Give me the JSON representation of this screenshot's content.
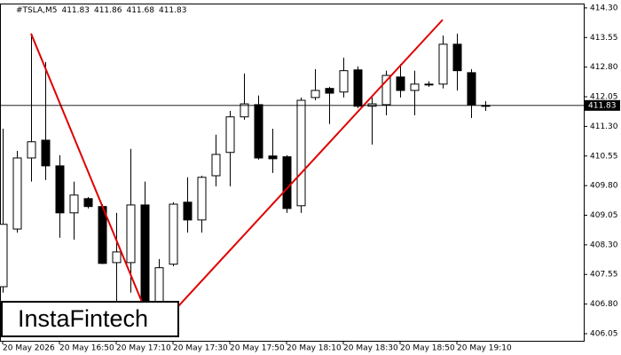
{
  "chart_data": {
    "type": "candlestick",
    "symbol": "#TSLA,M5",
    "quote": [
      411.83,
      411.86,
      411.68,
      411.83
    ],
    "watermark": "InstaFintech",
    "categories": [
      "20 May 2026",
      null,
      null,
      null,
      "20 May 16:50",
      null,
      null,
      null,
      "20 May 17:10",
      null,
      null,
      null,
      "20 May 17:30",
      null,
      null,
      null,
      "20 May 17:50",
      null,
      null,
      null,
      "20 May 18:10",
      null,
      null,
      null,
      "20 May 18:30",
      null,
      null,
      null,
      "20 May 18:50",
      null,
      null,
      null,
      "20 May 19:10",
      null,
      null
    ],
    "open": [
      407.24,
      408.7,
      410.5,
      410.95,
      410.3,
      409.11,
      409.47,
      409.27,
      407.85,
      407.85,
      409.31,
      406.75,
      407.81,
      409.38,
      408.93,
      410.05,
      410.64,
      411.54,
      411.85,
      410.55,
      410.53,
      409.29,
      412.03,
      412.26,
      412.17,
      412.73,
      411.81,
      411.85,
      412.55,
      412.21,
      412.37,
      412.37,
      413.38,
      412.66,
      411.83
    ],
    "high": [
      411.24,
      410.68,
      413.65,
      412.93,
      410.57,
      409.9,
      409.51,
      409.33,
      409.11,
      410.73,
      409.9,
      407.94,
      409.38,
      410.01,
      410.05,
      411.09,
      411.69,
      412.64,
      412.08,
      411.24,
      410.57,
      412.03,
      412.75,
      412.3,
      413.04,
      412.82,
      412.03,
      412.71,
      412.88,
      412.71,
      412.44,
      413.6,
      413.65,
      412.75,
      411.94
    ],
    "low": [
      407.09,
      408.61,
      409.9,
      409.94,
      408.48,
      408.43,
      409.22,
      407.81,
      406.86,
      407.09,
      406.5,
      406.5,
      407.76,
      408.61,
      408.61,
      409.78,
      409.78,
      411.47,
      410.46,
      410.12,
      409.11,
      409.11,
      411.96,
      411.36,
      412.03,
      411.76,
      410.84,
      411.58,
      412.03,
      411.58,
      412.3,
      412.26,
      412.21,
      411.51,
      411.69
    ],
    "close": [
      408.82,
      410.5,
      410.91,
      410.3,
      409.11,
      409.56,
      409.27,
      407.83,
      408.12,
      409.31,
      406.75,
      407.72,
      409.33,
      408.93,
      410.01,
      410.59,
      411.54,
      411.87,
      410.5,
      410.48,
      409.22,
      411.96,
      412.21,
      412.14,
      412.71,
      411.81,
      411.87,
      412.59,
      412.21,
      412.37,
      412.37,
      413.38,
      412.71,
      411.85,
      411.83
    ],
    "current_price": 411.83,
    "lines": [
      {
        "color": "#e00000",
        "x": [
          2,
          10.1
        ],
        "y": [
          413.65,
          406.6
        ]
      },
      {
        "color": "#e00000",
        "x": [
          12,
          31
        ],
        "y": [
          406.6,
          414.0
        ]
      }
    ],
    "ylim": [
      405.87,
      414.41
    ],
    "yticks": [
      {
        "value": 414.3,
        "label": "414.30"
      },
      {
        "value": 413.55,
        "label": "413.55"
      },
      {
        "value": 412.8,
        "label": "412.80"
      },
      {
        "value": 412.05,
        "label": "412.05"
      },
      {
        "value": 411.3,
        "label": "411.30"
      },
      {
        "value": 410.55,
        "label": "410.55"
      },
      {
        "value": 409.8,
        "label": "409.80"
      },
      {
        "value": 409.05,
        "label": "409.05"
      },
      {
        "value": 408.3,
        "label": "408.30"
      },
      {
        "value": 407.55,
        "label": "407.55"
      },
      {
        "value": 406.8,
        "label": "406.80"
      },
      {
        "value": 406.05,
        "label": "406.05"
      }
    ]
  }
}
